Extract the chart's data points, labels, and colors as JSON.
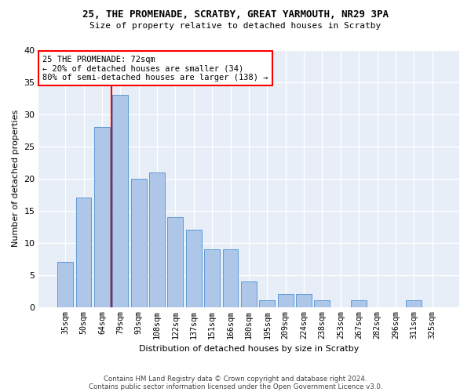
{
  "title1": "25, THE PROMENADE, SCRATBY, GREAT YARMOUTH, NR29 3PA",
  "title2": "Size of property relative to detached houses in Scratby",
  "xlabel": "Distribution of detached houses by size in Scratby",
  "ylabel": "Number of detached properties",
  "categories": [
    "35sqm",
    "50sqm",
    "64sqm",
    "79sqm",
    "93sqm",
    "108sqm",
    "122sqm",
    "137sqm",
    "151sqm",
    "166sqm",
    "180sqm",
    "195sqm",
    "209sqm",
    "224sqm",
    "238sqm",
    "253sqm",
    "267sqm",
    "282sqm",
    "296sqm",
    "311sqm",
    "325sqm"
  ],
  "values": [
    7,
    17,
    28,
    33,
    20,
    21,
    14,
    12,
    9,
    9,
    4,
    1,
    2,
    2,
    1,
    0,
    1,
    0,
    0,
    1,
    0
  ],
  "bar_color": "#aec6e8",
  "bar_edge_color": "#5b9bd5",
  "red_line_x": 2.5,
  "ylim": [
    0,
    40
  ],
  "yticks": [
    0,
    5,
    10,
    15,
    20,
    25,
    30,
    35,
    40
  ],
  "annotation_text": "25 THE PROMENADE: 72sqm\n← 20% of detached houses are smaller (34)\n80% of semi-detached houses are larger (138) →",
  "footer1": "Contains HM Land Registry data © Crown copyright and database right 2024.",
  "footer2": "Contains public sector information licensed under the Open Government Licence v3.0.",
  "background_color": "#e8eef8"
}
